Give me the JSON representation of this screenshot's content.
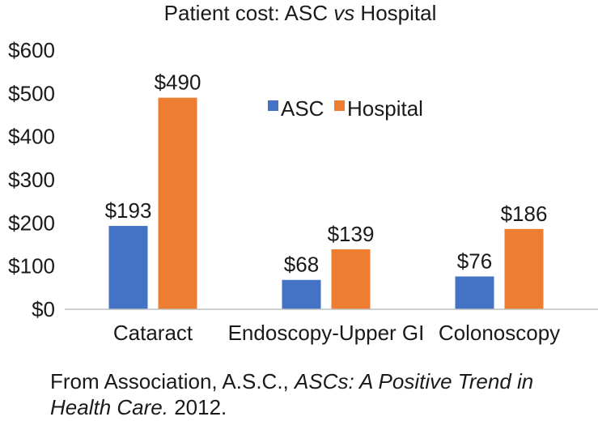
{
  "chart_data": {
    "type": "bar",
    "title": {
      "prefix": "Patient cost: ASC ",
      "italic": "vs",
      "suffix": " Hospital"
    },
    "categories": [
      "Cataract",
      "Endoscopy-Upper GI",
      "Colonoscopy"
    ],
    "series": [
      {
        "name": "ASC",
        "color": "#4472c4",
        "values": [
          193,
          68,
          76
        ],
        "labels": [
          "$193",
          "$68",
          "$76"
        ]
      },
      {
        "name": "Hospital",
        "color": "#ed7d31",
        "values": [
          490,
          139,
          186
        ],
        "labels": [
          "$490",
          "$139",
          "$186"
        ]
      }
    ],
    "ylim": [
      0,
      600
    ],
    "yticks": [
      0,
      100,
      200,
      300,
      400,
      500,
      600
    ],
    "ytick_labels": [
      "$0",
      "$100",
      "$200",
      "$300",
      "$400",
      "$500",
      "$600"
    ],
    "xlabel": "",
    "ylabel": "",
    "grid": false,
    "legend_position": "top-right"
  },
  "caption": {
    "prefix": "From Association, A.S.C., ",
    "italic": "ASCs: A Positive Trend in Health Care.",
    "suffix": " 2012."
  }
}
